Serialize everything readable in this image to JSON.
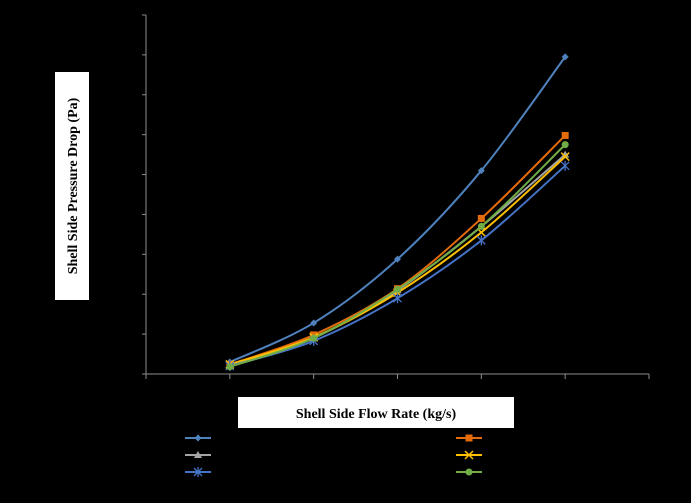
{
  "chart_data": {
    "type": "line",
    "title": "",
    "xlabel": "Shell Side Flow Rate (kg/s)",
    "ylabel": "Shell Side Pressure Drop (Pa)",
    "x": [
      1,
      2,
      3,
      4,
      5
    ],
    "xlim": [
      0,
      6
    ],
    "ylim": [
      0,
      9
    ],
    "grid": false,
    "legend_position": "bottom",
    "series": [
      {
        "marker": "diamond",
        "color": "#4F81BD",
        "values": [
          0.3,
          1.28,
          2.88,
          5.1,
          7.95
        ]
      },
      {
        "marker": "square",
        "color": "#E46C0A",
        "values": [
          0.24,
          0.98,
          2.14,
          3.9,
          5.98
        ]
      },
      {
        "marker": "triangle",
        "color": "#A5A5A5",
        "values": [
          0.2,
          0.9,
          2.1,
          3.7,
          5.5
        ]
      },
      {
        "marker": "x",
        "color": "#FFC000",
        "values": [
          0.24,
          0.92,
          2.04,
          3.55,
          5.45
        ]
      },
      {
        "marker": "star",
        "color": "#4472C4",
        "values": [
          0.2,
          0.83,
          1.9,
          3.35,
          5.22
        ]
      },
      {
        "marker": "circle",
        "color": "#70AD47",
        "values": [
          0.18,
          0.9,
          2.12,
          3.7,
          5.75
        ]
      }
    ]
  }
}
